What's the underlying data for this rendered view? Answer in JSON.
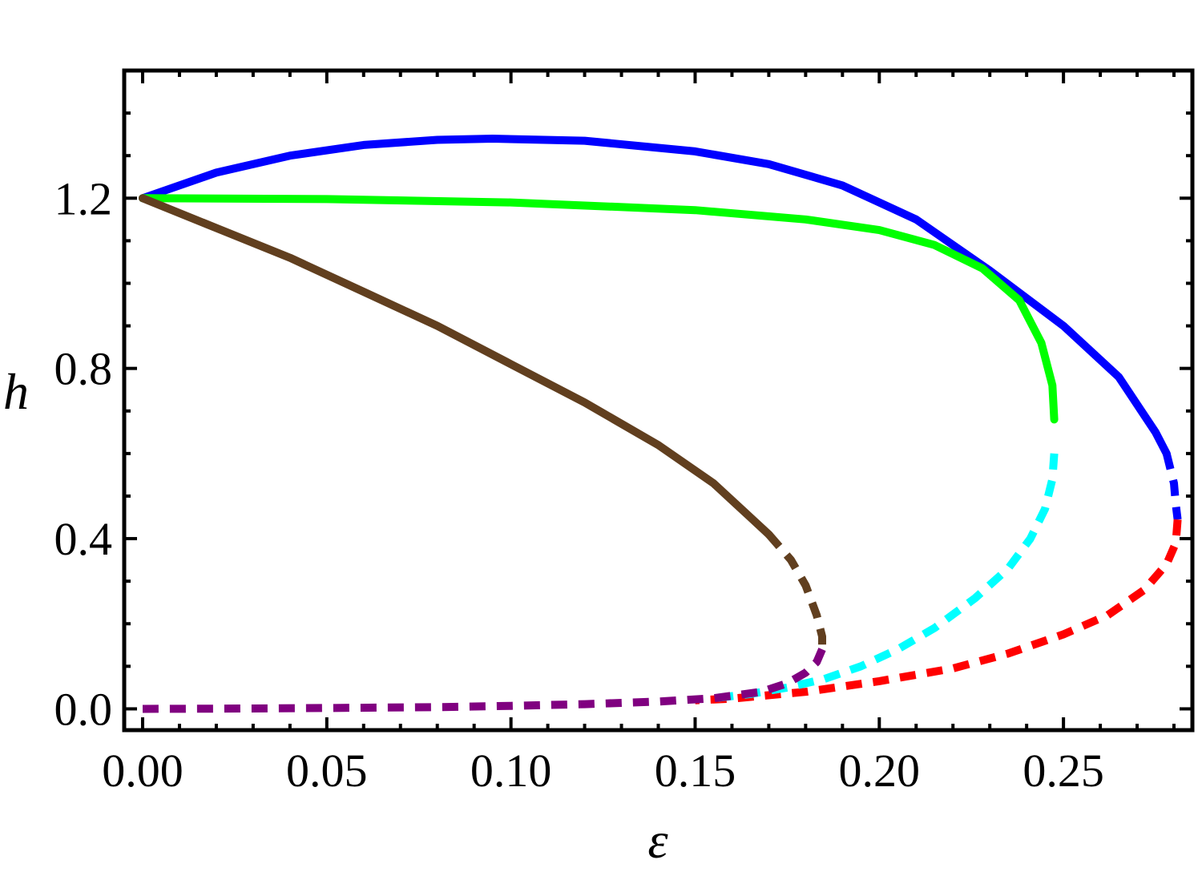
{
  "chart_data": {
    "type": "line",
    "xlabel": "ε",
    "ylabel": "h",
    "xlim": [
      -0.005,
      0.285
    ],
    "ylim": [
      -0.05,
      1.5
    ],
    "x_ticks": [
      "0.00",
      "0.05",
      "0.10",
      "0.15",
      "0.20",
      "0.25"
    ],
    "y_ticks": [
      "0.0",
      "0.4",
      "0.8",
      "1.2"
    ],
    "grid": false,
    "legend": "none",
    "series": [
      {
        "color": "#0000ff",
        "style": "solid",
        "points": [
          [
            0,
            1.2
          ],
          [
            0.02,
            1.26
          ],
          [
            0.04,
            1.3
          ],
          [
            0.06,
            1.325
          ],
          [
            0.08,
            1.337
          ],
          [
            0.095,
            1.34
          ],
          [
            0.12,
            1.335
          ],
          [
            0.15,
            1.31
          ],
          [
            0.17,
            1.28
          ],
          [
            0.19,
            1.23
          ],
          [
            0.21,
            1.15
          ],
          [
            0.23,
            1.03
          ],
          [
            0.25,
            0.9
          ],
          [
            0.265,
            0.78
          ],
          [
            0.275,
            0.65
          ],
          [
            0.278,
            0.6
          ]
        ]
      },
      {
        "color": "#0000ff",
        "style": "dashed",
        "points": [
          [
            0.278,
            0.6
          ],
          [
            0.28,
            0.53
          ],
          [
            0.2805,
            0.48
          ],
          [
            0.281,
            0.445
          ]
        ]
      },
      {
        "color": "#ff0000",
        "style": "dashed",
        "points": [
          [
            0.281,
            0.445
          ],
          [
            0.2805,
            0.39
          ],
          [
            0.278,
            0.34
          ],
          [
            0.272,
            0.28
          ],
          [
            0.262,
            0.22
          ],
          [
            0.25,
            0.175
          ],
          [
            0.235,
            0.13
          ],
          [
            0.22,
            0.095
          ],
          [
            0.2,
            0.065
          ],
          [
            0.18,
            0.04
          ],
          [
            0.16,
            0.024
          ],
          [
            0.15,
            0.02
          ]
        ]
      },
      {
        "color": "#00ff00",
        "style": "solid",
        "points": [
          [
            0,
            1.2
          ],
          [
            0.05,
            1.198
          ],
          [
            0.1,
            1.19
          ],
          [
            0.15,
            1.172
          ],
          [
            0.18,
            1.15
          ],
          [
            0.2,
            1.125
          ],
          [
            0.215,
            1.09
          ],
          [
            0.228,
            1.035
          ],
          [
            0.238,
            0.96
          ],
          [
            0.244,
            0.86
          ],
          [
            0.247,
            0.76
          ],
          [
            0.2475,
            0.68
          ]
        ]
      },
      {
        "color": "#00ffff",
        "style": "dashed",
        "points": [
          [
            0.2475,
            0.6
          ],
          [
            0.247,
            0.54
          ],
          [
            0.245,
            0.47
          ],
          [
            0.241,
            0.4
          ],
          [
            0.235,
            0.33
          ],
          [
            0.226,
            0.26
          ],
          [
            0.215,
            0.19
          ],
          [
            0.205,
            0.14
          ],
          [
            0.195,
            0.1
          ],
          [
            0.185,
            0.07
          ],
          [
            0.175,
            0.05
          ],
          [
            0.165,
            0.035
          ],
          [
            0.155,
            0.025
          ]
        ]
      },
      {
        "color": "#613f1f",
        "style": "solid",
        "points": [
          [
            0,
            1.2
          ],
          [
            0.02,
            1.13
          ],
          [
            0.04,
            1.06
          ],
          [
            0.06,
            0.98
          ],
          [
            0.08,
            0.9
          ],
          [
            0.1,
            0.81
          ],
          [
            0.12,
            0.72
          ],
          [
            0.14,
            0.62
          ],
          [
            0.155,
            0.53
          ],
          [
            0.165,
            0.45
          ],
          [
            0.17,
            0.41
          ]
        ]
      },
      {
        "color": "#613f1f",
        "style": "dashed",
        "points": [
          [
            0.17,
            0.41
          ],
          [
            0.176,
            0.35
          ],
          [
            0.18,
            0.29
          ],
          [
            0.183,
            0.22
          ],
          [
            0.1845,
            0.17
          ],
          [
            0.1845,
            0.14
          ]
        ]
      },
      {
        "color": "#800080",
        "style": "dashed",
        "points": [
          [
            0.1845,
            0.14
          ],
          [
            0.183,
            0.11
          ],
          [
            0.18,
            0.085
          ],
          [
            0.175,
            0.06
          ],
          [
            0.168,
            0.04
          ],
          [
            0.155,
            0.025
          ],
          [
            0.14,
            0.017
          ],
          [
            0.12,
            0.011
          ],
          [
            0.1,
            0.007
          ],
          [
            0.08,
            0.004
          ],
          [
            0.05,
            0.002
          ],
          [
            0.02,
            0.0005
          ],
          [
            0,
            0
          ]
        ]
      }
    ]
  }
}
